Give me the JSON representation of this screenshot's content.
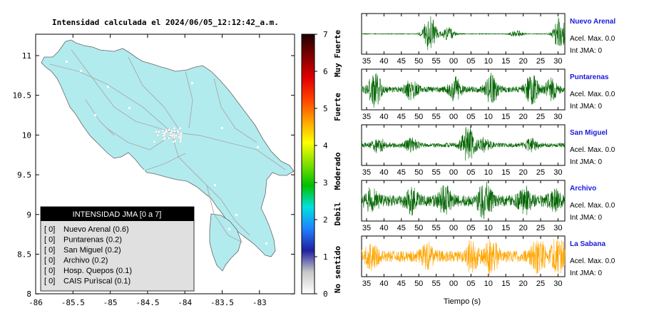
{
  "title": "Intensidad calculada el 2024/06/05_12:12:42_a.m.",
  "map": {
    "x_ticks": [
      "-86",
      "-85.5",
      "-85",
      "-84.5",
      "-84",
      "-83.5",
      "-83"
    ],
    "y_ticks": [
      "11",
      "10.5",
      "10",
      "9.5",
      "9",
      "8.5",
      "8"
    ],
    "land_color": "#b2ebee",
    "legend": {
      "title": "INTENSIDAD JMA [0 a 7]",
      "items": [
        {
          "level": "[ 0]",
          "label": "Nuevo Arenal (0.6)"
        },
        {
          "level": "[ 0]",
          "label": "Puntarenas (0.2)"
        },
        {
          "level": "[ 0]",
          "label": "San Miguel (0.2)"
        },
        {
          "level": "[ 0]",
          "label": "Archivo (0.2)"
        },
        {
          "level": "[ 0]",
          "label": "Hosp. Quepos (0.1)"
        },
        {
          "level": "[ 0]",
          "label": "CAIS Purìscal (0.1)"
        }
      ]
    }
  },
  "colorbar": {
    "ticks": [
      "7",
      "6",
      "5",
      "4",
      "3",
      "2",
      "1",
      "0"
    ],
    "category_labels": [
      "Muy Fuerte",
      "Fuerte",
      "Moderado",
      "Debil",
      "No sentido"
    ],
    "colors": [
      "#ffffff",
      "#c8c8c8",
      "#2020a0",
      "#2080ff",
      "#00e0e0",
      "#00c000",
      "#80e000",
      "#ffff00",
      "#ffa000",
      "#ff4000",
      "#e00000",
      "#800000",
      "#200000"
    ]
  },
  "chart_data": {
    "type": "line",
    "xlabel": "Tiempo (s)",
    "x_ticks": [
      "35",
      "40",
      "45",
      "50",
      "55",
      "00",
      "05",
      "10",
      "15",
      "20",
      "25",
      "30"
    ],
    "series": [
      {
        "name": "Nuevo Arenal",
        "accel": "Acel. Max. 0.0",
        "jma": "Int JMA: 0",
        "color": "#006400",
        "bursts": [
          [
            53.5,
            1.0
          ],
          [
            59,
            0.35
          ],
          [
            79.5,
            0.18
          ],
          [
            92.5,
            0.9
          ]
        ],
        "noise": 0.02
      },
      {
        "name": "Puntarenas",
        "accel": "Acel. Max. 0.0",
        "jma": "Int JMA: 0",
        "color": "#006400",
        "bursts": [
          [
            37,
            0.9
          ],
          [
            48,
            0.5
          ],
          [
            61,
            0.6
          ],
          [
            72,
            0.75
          ],
          [
            84,
            0.8
          ],
          [
            90,
            0.5
          ]
        ],
        "noise": 0.15
      },
      {
        "name": "San Miguel",
        "accel": "Acel. Max. 0.0",
        "jma": "Int JMA: 0",
        "color": "#006400",
        "bursts": [
          [
            38,
            0.35
          ],
          [
            48,
            0.3
          ],
          [
            65,
            1.0
          ],
          [
            70,
            0.35
          ],
          [
            84,
            0.3
          ]
        ],
        "noise": 0.12
      },
      {
        "name": "Archivo",
        "accel": "Acel. Max. 0.0",
        "jma": "Int JMA: 0",
        "color": "#006400",
        "bursts": [
          [
            36,
            0.5
          ],
          [
            48,
            0.5
          ],
          [
            58,
            0.6
          ],
          [
            70,
            1.0
          ],
          [
            82,
            0.55
          ],
          [
            91,
            0.5
          ]
        ],
        "noise": 0.3
      },
      {
        "name": "La Sabana",
        "accel": "Acel. Max. 0.0",
        "jma": "Int JMA: 0",
        "color": "#ffa500",
        "bursts": [
          [
            36,
            0.5
          ],
          [
            53,
            0.5
          ],
          [
            66,
            0.7
          ],
          [
            72,
            0.8
          ],
          [
            86,
            0.9
          ],
          [
            92,
            1.0
          ]
        ],
        "noise": 0.3
      }
    ]
  }
}
